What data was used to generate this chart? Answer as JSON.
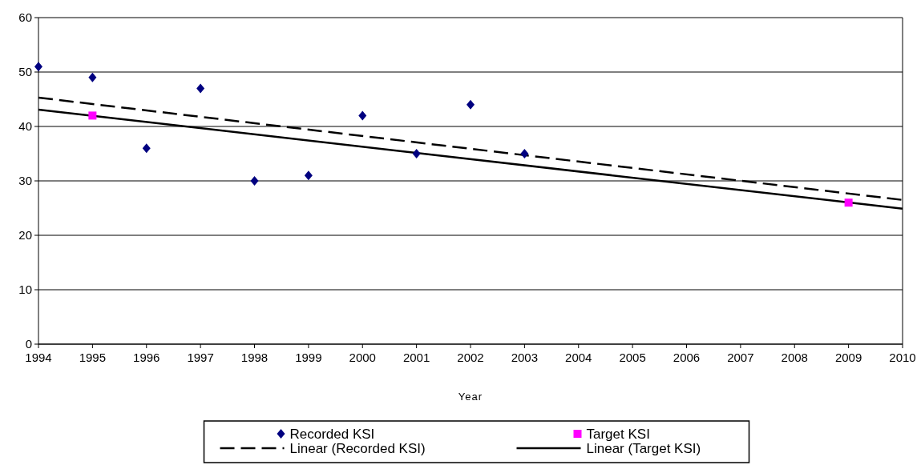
{
  "chart_data": {
    "type": "scatter",
    "xlabel": "Year",
    "xlim": [
      1994,
      2010
    ],
    "xticks": [
      1994,
      1995,
      1996,
      1997,
      1998,
      1999,
      2000,
      2001,
      2002,
      2003,
      2004,
      2005,
      2006,
      2007,
      2008,
      2009,
      2010
    ],
    "ylim": [
      0,
      60
    ],
    "yticks": [
      0,
      10,
      20,
      30,
      40,
      50,
      60
    ],
    "grid": "y",
    "legend": "bottom",
    "series": [
      {
        "name": "Recorded KSI",
        "marker": "diamond",
        "color": "#000080",
        "x": [
          1994,
          1995,
          1996,
          1997,
          1998,
          1999,
          2000,
          2001,
          2002,
          2003
        ],
        "values": [
          51,
          49,
          36,
          47,
          30,
          31,
          42,
          35,
          44,
          35
        ]
      },
      {
        "name": "Target KSI",
        "marker": "square",
        "color": "#ff00ff",
        "x": [
          1995,
          2009
        ],
        "values": [
          42,
          26
        ]
      },
      {
        "name": "Linear (Recorded KSI)",
        "type": "line",
        "line_style": "dashed",
        "marker": "none",
        "color": "#000000",
        "x": [
          1994,
          2010
        ],
        "values": [
          45.3,
          26.5
        ]
      },
      {
        "name": "Linear (Target KSI)",
        "type": "line",
        "line_style": "solid",
        "marker": "none",
        "color": "#000000",
        "x": [
          1994,
          2010
        ],
        "values": [
          43.1,
          24.9
        ]
      }
    ]
  }
}
